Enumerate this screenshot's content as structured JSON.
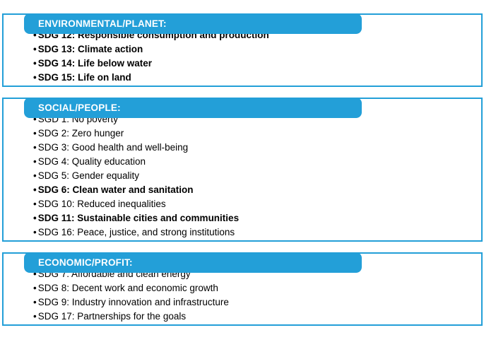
{
  "colors": {
    "accent": "#239FD8",
    "header_text": "#FFFFFF",
    "body_text": "#000000"
  },
  "bullet": "•",
  "sections": [
    {
      "title": "ENVIRONMENTAL/PLANET:",
      "items": [
        {
          "text": "SDG 12: Responsible consumption and production",
          "bold": true
        },
        {
          "text": "SDG 13: Climate action",
          "bold": true
        },
        {
          "text": "SDG 14: Life below water",
          "bold": true
        },
        {
          "text": "SDG 15: Life on land",
          "bold": true
        }
      ]
    },
    {
      "title": "SOCIAL/PEOPLE:",
      "items": [
        {
          "text": "SGD 1: No poverty",
          "bold": false
        },
        {
          "text": "SDG 2: Zero hunger",
          "bold": false
        },
        {
          "text": "SDG 3: Good health and well-being",
          "bold": false
        },
        {
          "text": "SDG 4: Quality education",
          "bold": false
        },
        {
          "text": "SDG 5: Gender equality",
          "bold": false
        },
        {
          "text": "SDG 6: Clean water and sanitation",
          "bold": true
        },
        {
          "text": "SDG 10: Reduced inequalities",
          "bold": false
        },
        {
          "text": "SDG 11: Sustainable cities and communities",
          "bold": true
        },
        {
          "text": "SDG 16: Peace, justice, and strong institutions",
          "bold": false
        }
      ]
    },
    {
      "title": "ECONOMIC/PROFIT:",
      "items": [
        {
          "text": "SDG 7: Affordable and clean energy",
          "bold": false
        },
        {
          "text": "SDG 8: Decent work and economic growth",
          "bold": false
        },
        {
          "text": "SDG 9: Industry innovation and infrastructure",
          "bold": false
        },
        {
          "text": "SDG 17: Partnerships for the goals",
          "bold": false
        }
      ]
    }
  ]
}
